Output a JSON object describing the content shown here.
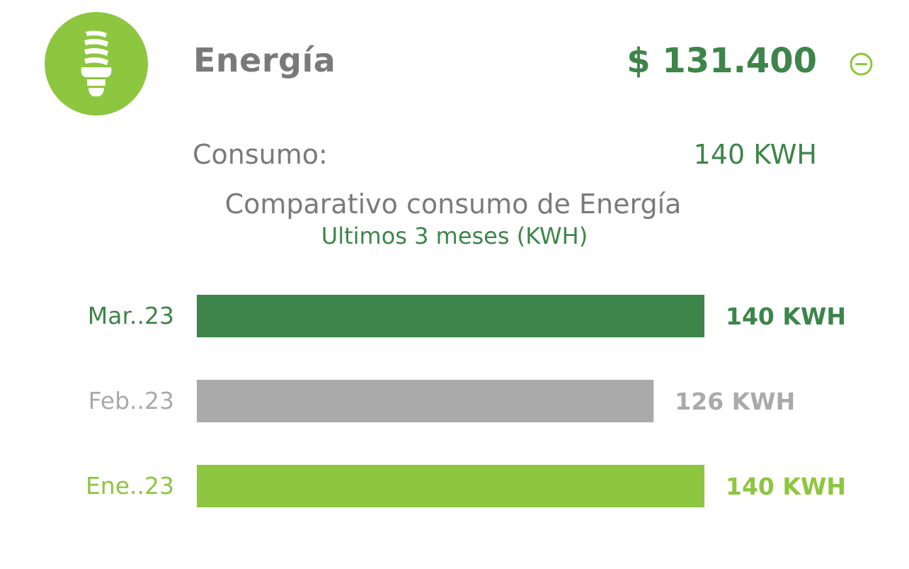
{
  "header": {
    "icon": "lightbulb-icon",
    "title": "Energía",
    "amount": "$ 131.400",
    "collapse_icon": "minus-circle-icon"
  },
  "consumo": {
    "label": "Consumo:",
    "value": "140 KWH"
  },
  "colors": {
    "brand_green": "#8dc63f",
    "dark_green": "#3d854a",
    "gray": "#aaaaaa",
    "text_gray": "#7a7a7a"
  },
  "chart_data": {
    "type": "bar",
    "orientation": "horizontal",
    "title": "Comparativo consumo de Energía",
    "subtitle": "Ultimos 3 meses (KWH)",
    "categories": [
      "Mar..23",
      "Feb..23",
      "Ene..23"
    ],
    "values": [
      140,
      126,
      140
    ],
    "value_labels": [
      "140 KWH",
      "126 KWH",
      "140 KWH"
    ],
    "colors": [
      "#3d854a",
      "#aaaaaa",
      "#8dc63f"
    ],
    "xlim": [
      0,
      140
    ],
    "grid": false,
    "legend": "none"
  }
}
